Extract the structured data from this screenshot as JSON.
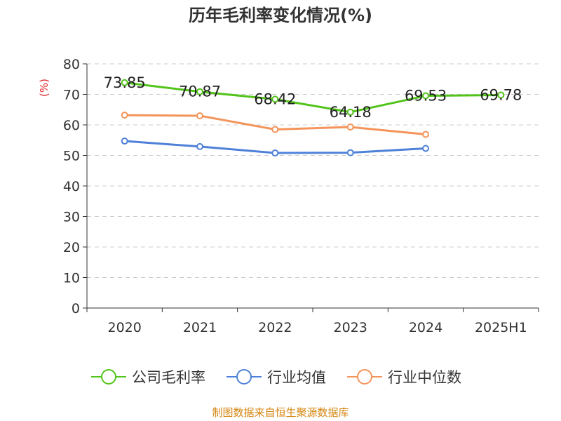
{
  "chart_data": {
    "type": "line",
    "title": "历年毛利率变化情况(%)",
    "ylabel": "(%)",
    "xlabel": "",
    "categories": [
      "2020",
      "2021",
      "2022",
      "2023",
      "2024",
      "2025H1"
    ],
    "ylim": [
      0,
      80
    ],
    "yticks": [
      0,
      10,
      20,
      30,
      40,
      50,
      60,
      70,
      80
    ],
    "grid": true,
    "legend_position": "bottom",
    "series": [
      {
        "name": "公司毛利率",
        "color": "#52c41a",
        "show_labels": true,
        "values": [
          73.85,
          70.87,
          68.42,
          64.18,
          69.53,
          69.78
        ]
      },
      {
        "name": "行业均值",
        "color": "#4f81d9",
        "show_labels": false,
        "values": [
          54.7,
          52.9,
          50.8,
          50.9,
          52.3,
          null
        ]
      },
      {
        "name": "行业中位数",
        "color": "#f4945a",
        "show_labels": false,
        "values": [
          63.2,
          63.0,
          58.5,
          59.3,
          56.9,
          null
        ]
      }
    ]
  },
  "source_text": "制图数据来自恒生聚源数据库",
  "colors": {
    "axis": "#333333",
    "grid": "#cccccc",
    "ylabel": "#e0262b",
    "source": "#d4850f"
  }
}
